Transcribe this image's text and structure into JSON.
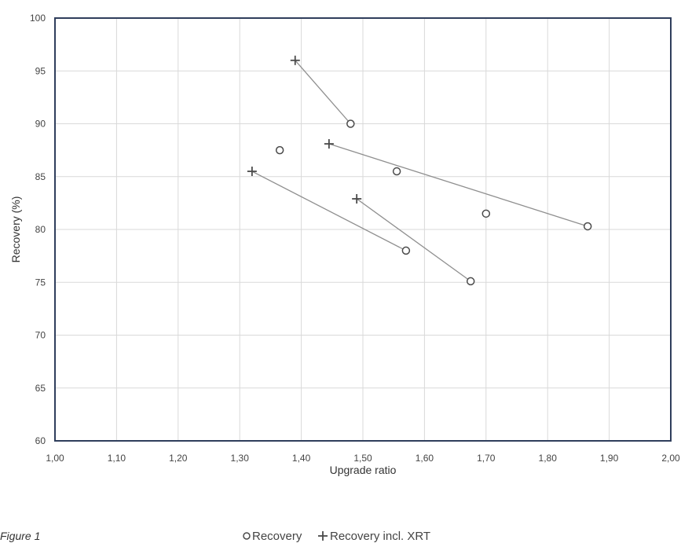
{
  "caption": "Figure 1",
  "chart_data": {
    "type": "scatter",
    "xlabel": "Upgrade ratio",
    "ylabel": "Recovery  (%)",
    "xlim": [
      1.0,
      2.0
    ],
    "ylim": [
      60,
      100
    ],
    "x_ticks": [
      "1,00",
      "1,10",
      "1,20",
      "1,30",
      "1,40",
      "1,50",
      "1,60",
      "1,70",
      "1,80",
      "1,90",
      "2,00"
    ],
    "y_ticks": [
      "60",
      "65",
      "70",
      "75",
      "80",
      "85",
      "90",
      "95",
      "100"
    ],
    "grid": true,
    "legend_position": "bottom",
    "series": [
      {
        "name": "Recovery",
        "marker": "circle",
        "points": [
          {
            "x": 1.48,
            "y": 90.0
          },
          {
            "x": 1.365,
            "y": 87.5
          },
          {
            "x": 1.555,
            "y": 85.5
          },
          {
            "x": 1.7,
            "y": 81.5
          },
          {
            "x": 1.865,
            "y": 80.3
          },
          {
            "x": 1.57,
            "y": 78.0
          },
          {
            "x": 1.675,
            "y": 75.1
          }
        ]
      },
      {
        "name": "Recovery incl. XRT",
        "marker": "plus",
        "points": [
          {
            "x": 1.39,
            "y": 96.0
          },
          {
            "x": 1.445,
            "y": 88.1
          },
          {
            "x": 1.32,
            "y": 85.5
          },
          {
            "x": 1.49,
            "y": 82.9
          }
        ]
      }
    ],
    "connectors": [
      {
        "from": {
          "x": 1.39,
          "y": 96.0
        },
        "to": {
          "x": 1.48,
          "y": 90.0
        }
      },
      {
        "from": {
          "x": 1.445,
          "y": 88.1
        },
        "to": {
          "x": 1.865,
          "y": 80.3
        }
      },
      {
        "from": {
          "x": 1.32,
          "y": 85.5
        },
        "to": {
          "x": 1.57,
          "y": 78.0
        }
      },
      {
        "from": {
          "x": 1.49,
          "y": 82.9
        },
        "to": {
          "x": 1.675,
          "y": 75.1
        }
      }
    ],
    "colors": {
      "frame": "#2f3e5c",
      "grid": "#d9d9d9",
      "connector": "#8f8f8f",
      "marker": "#4a4a4a"
    }
  }
}
